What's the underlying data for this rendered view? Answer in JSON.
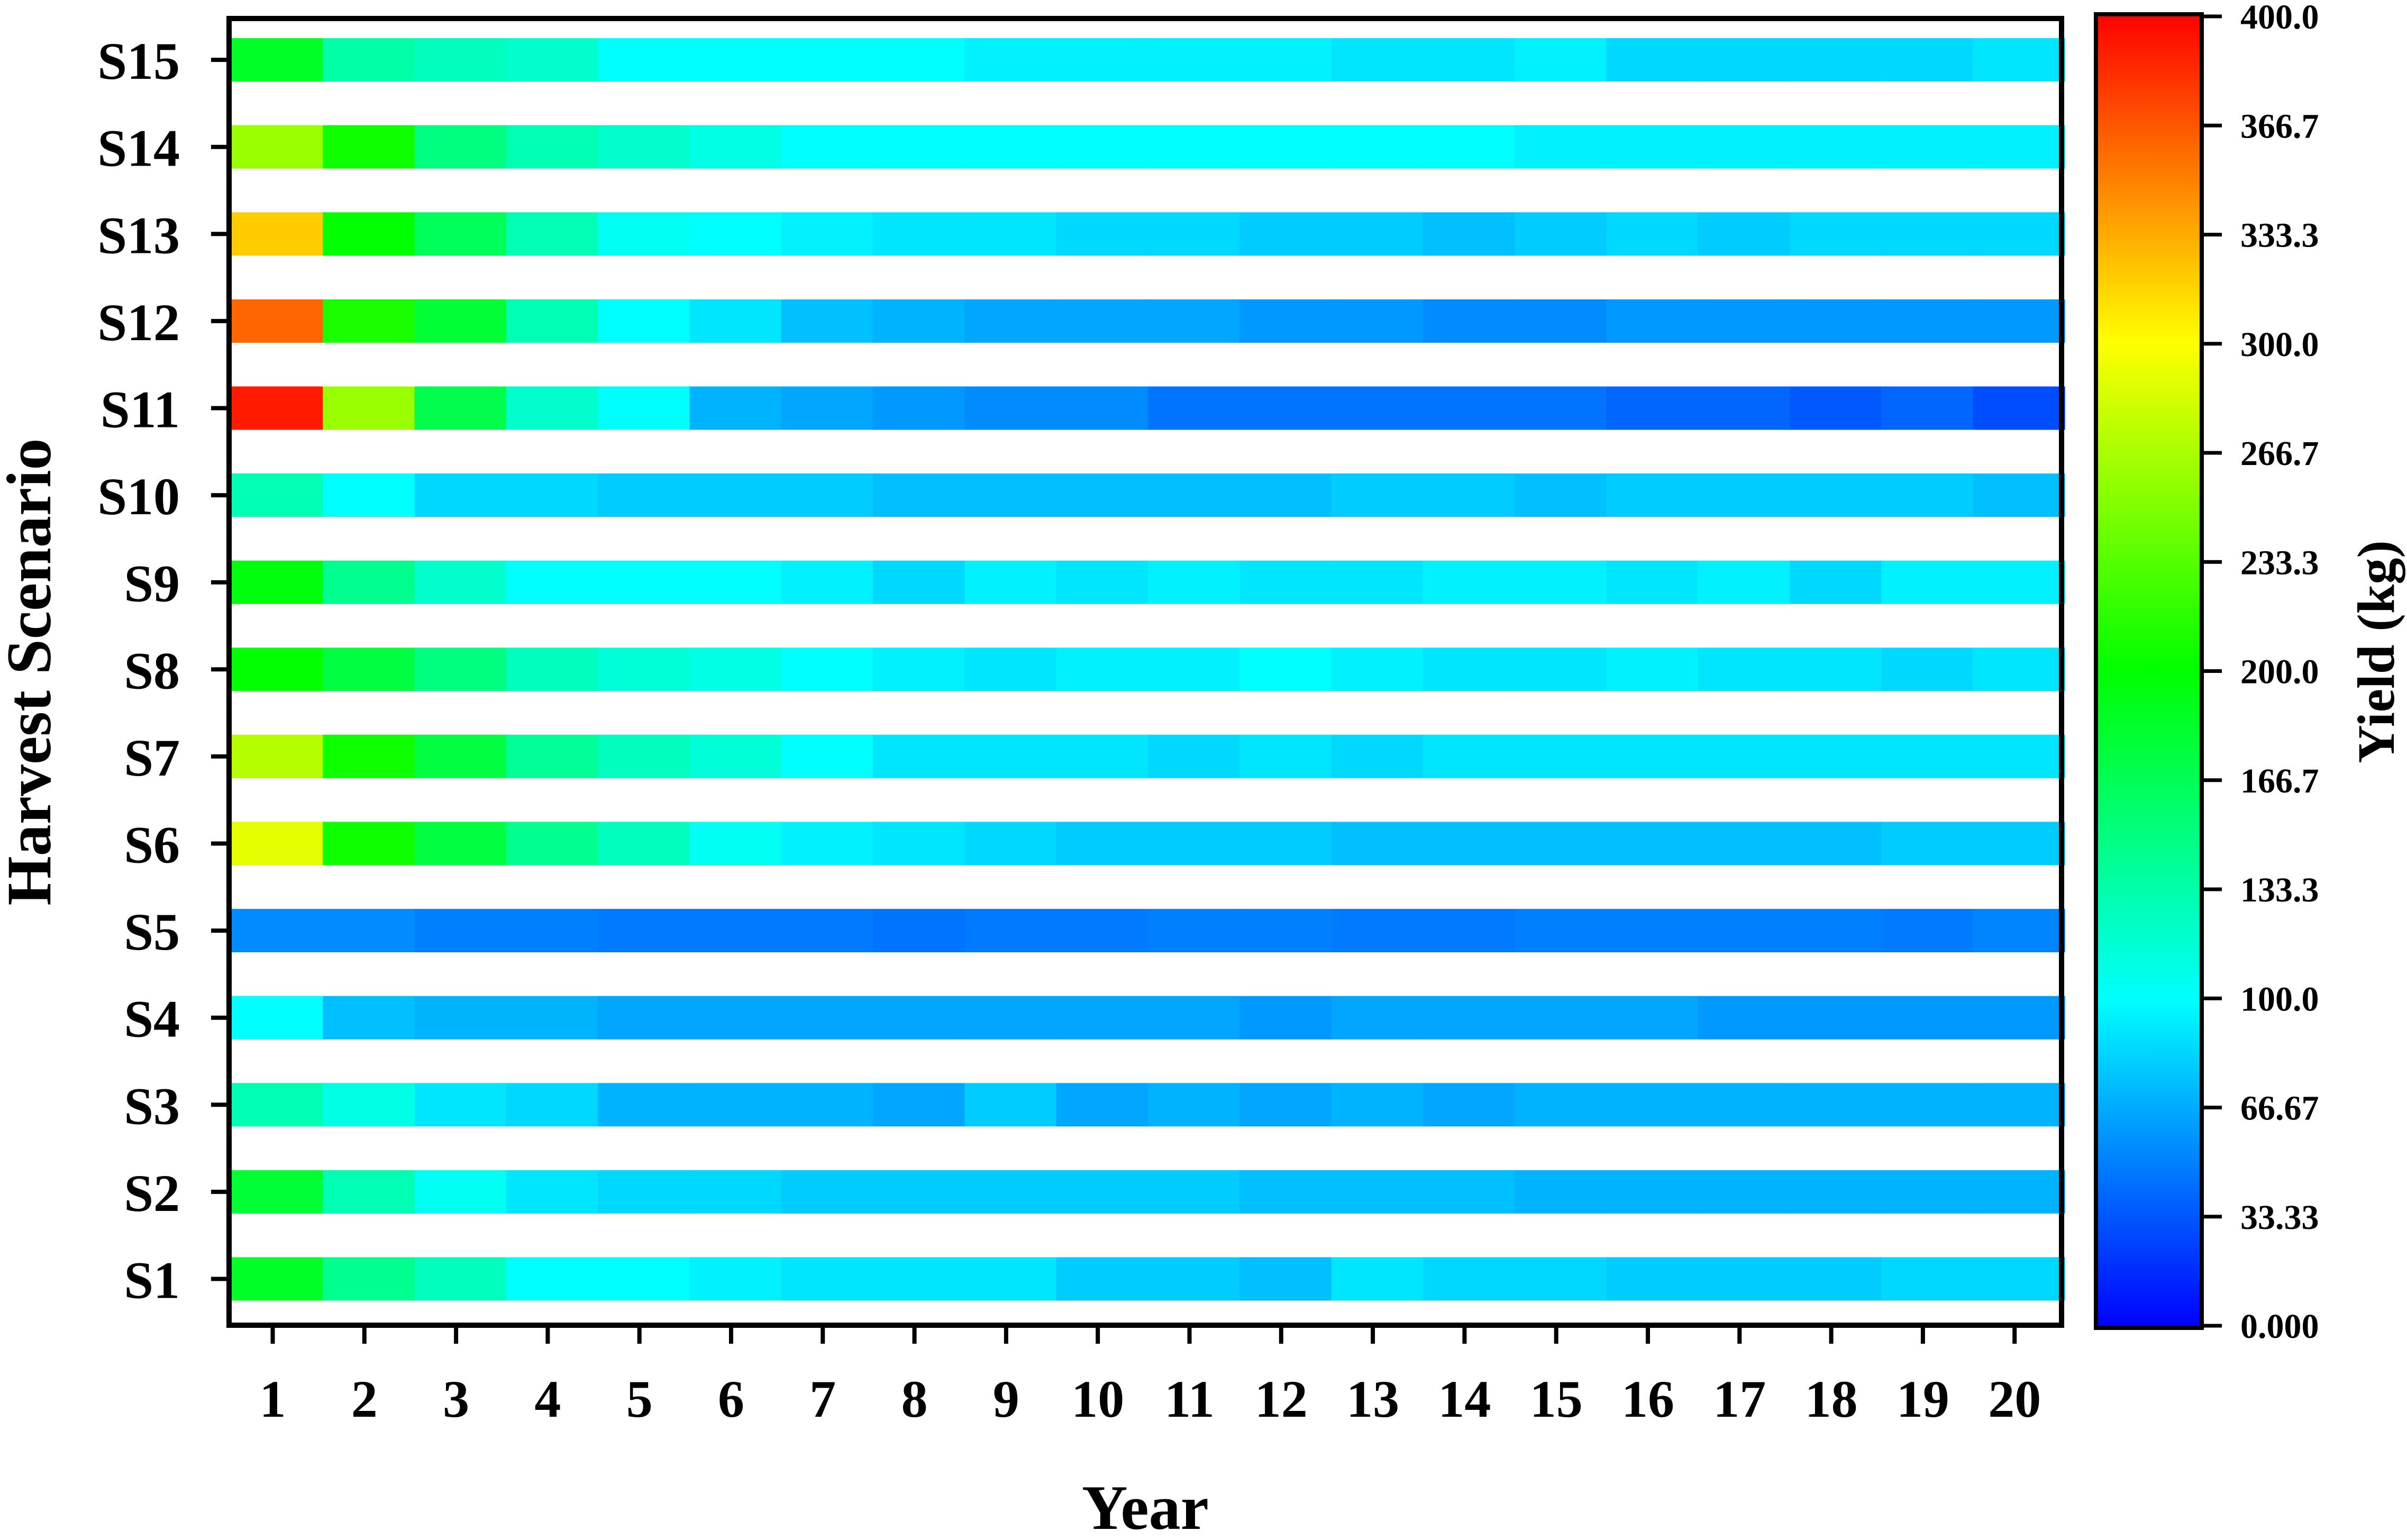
{
  "chart_data": {
    "type": "heatmap",
    "title": "",
    "xlabel": "Year",
    "ylabel": "Harvest Scenario",
    "colorbar_label": "Yield (kg)",
    "color_range": [
      0,
      400
    ],
    "colormap": [
      "#0000ff",
      "#00ffff",
      "#00ff00",
      "#ffff00",
      "#ff0000"
    ],
    "colorbar_ticks": [
      "0.000",
      "33.33",
      "66.67",
      "100.0",
      "133.3",
      "166.7",
      "200.0",
      "233.3",
      "266.7",
      "300.0",
      "333.3",
      "366.7",
      "400.0"
    ],
    "x_categories": [
      "1",
      "2",
      "3",
      "4",
      "5",
      "6",
      "7",
      "8",
      "9",
      "10",
      "11",
      "12",
      "13",
      "14",
      "15",
      "16",
      "17",
      "18",
      "19",
      "20"
    ],
    "y_categories": [
      "S1",
      "S2",
      "S3",
      "S4",
      "S5",
      "S6",
      "S7",
      "S8",
      "S9",
      "S10",
      "S11",
      "S12",
      "S13",
      "S14",
      "S15"
    ],
    "grid": false,
    "values": [
      [
        185,
        145,
        125,
        100,
        100,
        95,
        90,
        90,
        90,
        80,
        80,
        75,
        90,
        85,
        85,
        80,
        80,
        80,
        85,
        85
      ],
      [
        180,
        130,
        105,
        90,
        85,
        85,
        80,
        80,
        80,
        80,
        80,
        75,
        75,
        75,
        70,
        70,
        70,
        70,
        70,
        70
      ],
      [
        130,
        110,
        90,
        85,
        70,
        70,
        70,
        65,
        80,
        65,
        70,
        65,
        70,
        65,
        70,
        70,
        70,
        70,
        70,
        70
      ],
      [
        100,
        75,
        70,
        70,
        65,
        65,
        65,
        65,
        65,
        65,
        65,
        60,
        65,
        65,
        65,
        65,
        60,
        60,
        60,
        60
      ],
      [
        55,
        55,
        50,
        50,
        48,
        48,
        48,
        45,
        48,
        48,
        50,
        50,
        48,
        48,
        50,
        50,
        50,
        50,
        48,
        52
      ],
      [
        290,
        205,
        175,
        145,
        125,
        105,
        95,
        90,
        85,
        80,
        80,
        80,
        75,
        75,
        75,
        75,
        75,
        75,
        80,
        80
      ],
      [
        270,
        205,
        175,
        140,
        125,
        115,
        100,
        90,
        90,
        90,
        85,
        90,
        85,
        90,
        90,
        90,
        90,
        90,
        90,
        90
      ],
      [
        200,
        175,
        150,
        125,
        115,
        110,
        100,
        95,
        90,
        95,
        95,
        100,
        95,
        90,
        90,
        95,
        90,
        90,
        85,
        90
      ],
      [
        195,
        145,
        120,
        100,
        100,
        100,
        95,
        85,
        95,
        90,
        95,
        90,
        90,
        95,
        95,
        90,
        95,
        85,
        95,
        95
      ],
      [
        130,
        100,
        85,
        85,
        80,
        80,
        80,
        75,
        75,
        75,
        75,
        75,
        80,
        80,
        75,
        80,
        80,
        80,
        80,
        75
      ],
      [
        390,
        260,
        170,
        120,
        100,
        70,
        65,
        60,
        55,
        55,
        45,
        45,
        45,
        45,
        45,
        40,
        40,
        35,
        40,
        30
      ],
      [
        360,
        210,
        180,
        130,
        100,
        90,
        75,
        70,
        65,
        65,
        65,
        60,
        60,
        55,
        55,
        60,
        60,
        60,
        60,
        60
      ],
      [
        320,
        200,
        165,
        130,
        105,
        100,
        95,
        90,
        90,
        85,
        85,
        80,
        80,
        75,
        80,
        85,
        80,
        85,
        85,
        85
      ],
      [
        260,
        205,
        150,
        130,
        120,
        110,
        100,
        100,
        100,
        100,
        100,
        100,
        100,
        100,
        95,
        95,
        95,
        95,
        95,
        95
      ],
      [
        185,
        135,
        125,
        120,
        100,
        100,
        100,
        100,
        95,
        95,
        95,
        95,
        90,
        90,
        95,
        85,
        85,
        85,
        85,
        90
      ]
    ]
  }
}
